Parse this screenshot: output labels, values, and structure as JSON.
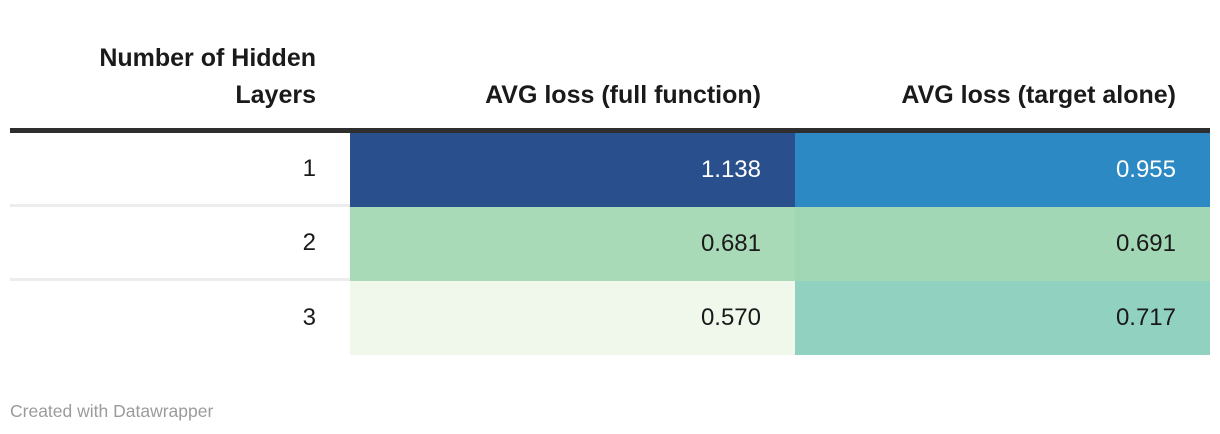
{
  "table": {
    "columns": [
      {
        "label": "Number of Hidden Layers"
      },
      {
        "label": "AVG loss (full function)"
      },
      {
        "label": "AVG loss (target alone)"
      }
    ],
    "rows": [
      {
        "cells": [
          {
            "text": "1",
            "bg": "#ffffff",
            "fg": "#1a1a1a"
          },
          {
            "text": "1.138",
            "bg": "#294f8c",
            "fg": "#ffffff"
          },
          {
            "text": "0.955",
            "bg": "#2d89c3",
            "fg": "#ffffff"
          }
        ]
      },
      {
        "cells": [
          {
            "text": "2",
            "bg": "#ffffff",
            "fg": "#1a1a1a"
          },
          {
            "text": "0.681",
            "bg": "#a9dab8",
            "fg": "#1a1a1a"
          },
          {
            "text": "0.691",
            "bg": "#a2d7b6",
            "fg": "#1a1a1a"
          }
        ]
      },
      {
        "cells": [
          {
            "text": "3",
            "bg": "#ffffff",
            "fg": "#1a1a1a"
          },
          {
            "text": "0.570",
            "bg": "#eff8ea",
            "fg": "#1a1a1a"
          },
          {
            "text": "0.717",
            "bg": "#90d1c0",
            "fg": "#1a1a1a"
          }
        ]
      }
    ],
    "header_rule_color": "#2e2e2e",
    "row_divider_color": "#ededed"
  },
  "footer": {
    "credit": "Created with Datawrapper",
    "color": "#9b9b9b"
  },
  "chart_data": {
    "type": "table",
    "title": "",
    "columns": [
      "Number of Hidden Layers",
      "AVG loss (full function)",
      "AVG loss (target alone)"
    ],
    "rows": [
      [
        1,
        1.138,
        0.955
      ],
      [
        2,
        0.681,
        0.691
      ],
      [
        3,
        0.57,
        0.717
      ]
    ],
    "heatmap": true,
    "palette_hint": "green-blue heatmap: low values pale green, high values dark blue",
    "footer": "Created with Datawrapper"
  }
}
